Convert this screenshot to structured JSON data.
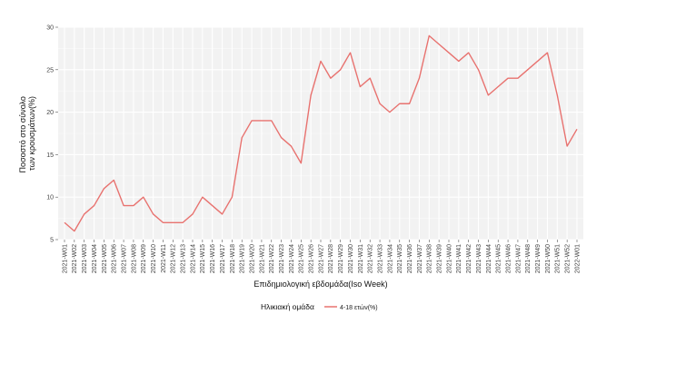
{
  "chart_data": {
    "type": "line",
    "title": "",
    "xlabel": "Επιδημιολογική εβδομάδα(Iso Week)",
    "ylabel": [
      "Ποσοστό στο σύνολο",
      "των κρουσμάτων(%)"
    ],
    "ylim": [
      5,
      30
    ],
    "yticks": [
      5,
      10,
      15,
      20,
      25,
      30
    ],
    "grid": true,
    "legend_position": "bottom",
    "legend_title": "Ηλικιακή ομάδα",
    "categories": [
      "2021-W01",
      "2021-W02",
      "2021-W03",
      "2021-W04",
      "2021-W05",
      "2021-W06",
      "2021-W07",
      "2021-W08",
      "2021-W09",
      "2021-W10",
      "2021-W11",
      "2021-W12",
      "2021-W13",
      "2021-W14",
      "2021-W15",
      "2021-W16",
      "2021-W17",
      "2021-W18",
      "2021-W19",
      "2021-W20",
      "2021-W21",
      "2021-W22",
      "2021-W23",
      "2021-W24",
      "2021-W25",
      "2021-W26",
      "2021-W27",
      "2021-W28",
      "2021-W29",
      "2021-W30",
      "2021-W31",
      "2021-W32",
      "2021-W33",
      "2021-W34",
      "2021-W35",
      "2021-W36",
      "2021-W37",
      "2021-W38",
      "2021-W39",
      "2021-W40",
      "2021-W41",
      "2021-W42",
      "2021-W43",
      "2021-W44",
      "2021-W45",
      "2021-W46",
      "2021-W47",
      "2021-W48",
      "2021-W49",
      "2021-W50",
      "2021-W51",
      "2021-W52",
      "2022-W01"
    ],
    "series": [
      {
        "name": "4-18 ετών(%)",
        "color": "#e8726f",
        "values": [
          7,
          6,
          8,
          9,
          11,
          12,
          9,
          9,
          10,
          8,
          7,
          7,
          7,
          8,
          10,
          9,
          8,
          10,
          17,
          19,
          19,
          19,
          17,
          16,
          14,
          22,
          26,
          24,
          25,
          27,
          23,
          24,
          21,
          20,
          21,
          21,
          24,
          29,
          28,
          27,
          26,
          27,
          25,
          22,
          23,
          24,
          24,
          25,
          26,
          27,
          22,
          16,
          18
        ]
      }
    ]
  }
}
